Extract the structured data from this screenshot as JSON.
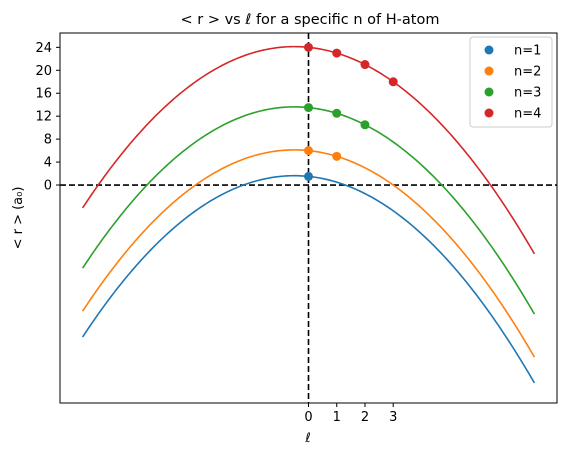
{
  "chart_data": {
    "type": "line",
    "title": "< r >  vs ℓ for a specific n of H-atom",
    "xlabel": "ℓ",
    "ylabel": "< r > (a₀)",
    "xlim": [
      -8.8,
      8.8
    ],
    "ylim": [
      -38,
      26.5
    ],
    "x_ticks": [
      0,
      1,
      2,
      3
    ],
    "x_tick_labels": [
      "0",
      "1",
      "2",
      "3"
    ],
    "y_ticks": [
      0,
      4,
      8,
      12,
      16,
      20,
      24
    ],
    "y_tick_labels": [
      "0",
      "4",
      "8",
      "12",
      "16",
      "20",
      "24"
    ],
    "curve_x_range": [
      -8,
      8
    ],
    "legend_position": "top-right",
    "grid": false,
    "reference_lines": [
      {
        "axis": "x",
        "value": 0,
        "style": "dashed"
      },
      {
        "axis": "y",
        "value": 0,
        "style": "dashed"
      }
    ],
    "series": [
      {
        "name": "n=1",
        "color": "#1f77b4",
        "n": 1,
        "points": [
          {
            "x": 0,
            "y": 1.5
          }
        ]
      },
      {
        "name": "n=2",
        "color": "#ff7f0e",
        "n": 2,
        "points": [
          {
            "x": 0,
            "y": 6
          },
          {
            "x": 1,
            "y": 5
          }
        ]
      },
      {
        "name": "n=3",
        "color": "#2ca02c",
        "n": 3,
        "points": [
          {
            "x": 0,
            "y": 13.5
          },
          {
            "x": 1,
            "y": 12.5
          },
          {
            "x": 2,
            "y": 10.5
          }
        ]
      },
      {
        "name": "n=4",
        "color": "#d62728",
        "n": 4,
        "points": [
          {
            "x": 0,
            "y": 24
          },
          {
            "x": 1,
            "y": 23
          },
          {
            "x": 2,
            "y": 21
          },
          {
            "x": 3,
            "y": 18
          }
        ]
      }
    ]
  }
}
